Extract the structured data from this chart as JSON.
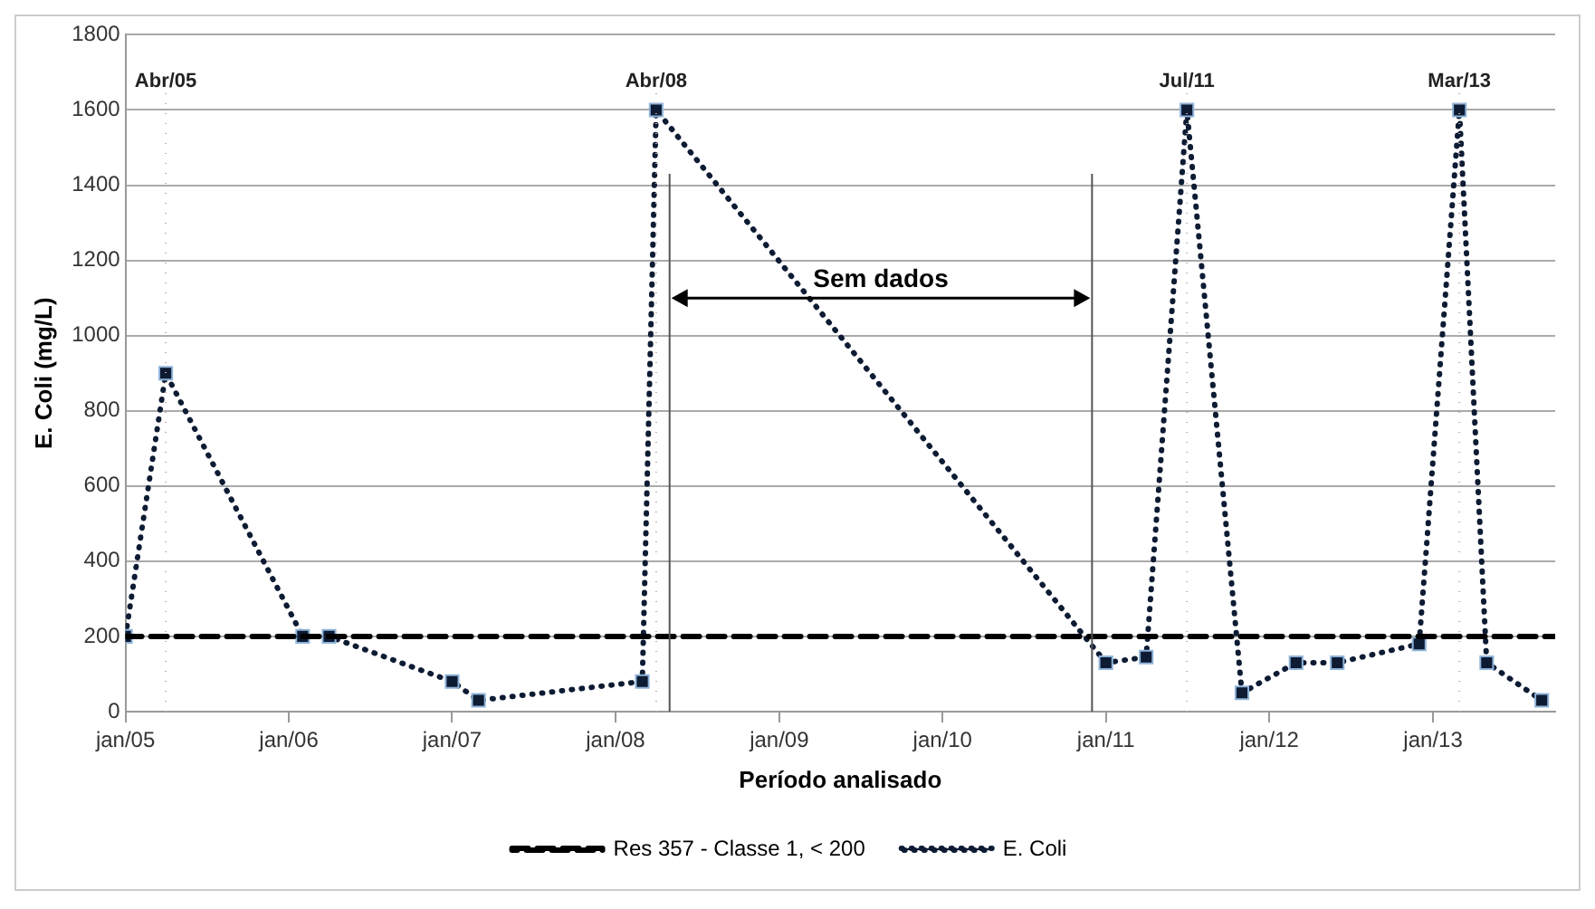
{
  "chart_data": {
    "type": "line",
    "xlabel": "Período analisado",
    "ylabel": "E. Coli (mg/L)",
    "xlim": [
      "2005-01",
      "2013-10"
    ],
    "xticks": [
      {
        "value": "2005-01",
        "label": "jan/05"
      },
      {
        "value": "2006-01",
        "label": "jan/06"
      },
      {
        "value": "2007-01",
        "label": "jan/07"
      },
      {
        "value": "2008-01",
        "label": "jan/08"
      },
      {
        "value": "2009-01",
        "label": "jan/09"
      },
      {
        "value": "2010-01",
        "label": "jan/10"
      },
      {
        "value": "2011-01",
        "label": "jan/11"
      },
      {
        "value": "2012-01",
        "label": "jan/12"
      },
      {
        "value": "2013-01",
        "label": "jan/13"
      }
    ],
    "ylim": [
      0,
      1800
    ],
    "yticks": [
      0,
      200,
      400,
      600,
      800,
      1000,
      1200,
      1400,
      1600,
      1800
    ],
    "grid": "y",
    "legend": "bottom",
    "series": [
      {
        "name": "Res 357 - Classe 1, < 200",
        "color": "#000000",
        "line_style": "dashed",
        "marker": "none",
        "x": [
          "2005-01",
          "2013-10"
        ],
        "values": [
          200,
          200
        ]
      },
      {
        "name": "E. Coli",
        "color": "#0d1b33",
        "line_style": "dotted",
        "marker": "square",
        "x": [
          "2005-01",
          "2005-04",
          "2006-02",
          "2006-04",
          "2007-01",
          "2007-03",
          "2008-03",
          "2008-04",
          "2011-01",
          "2011-04",
          "2011-07",
          "2011-11",
          "2012-03",
          "2012-06",
          "2012-12",
          "2013-03",
          "2013-05",
          "2013-09"
        ],
        "values": [
          200,
          900,
          200,
          200,
          80,
          30,
          80,
          1600,
          130,
          145,
          1600,
          50,
          130,
          130,
          180,
          1600,
          130,
          30
        ]
      }
    ],
    "ref_lines": [
      {
        "axis": "x",
        "value": "2005-04",
        "label": "Abr/05",
        "color": "#c8a8a8",
        "line_style": "dotted"
      },
      {
        "axis": "x",
        "value": "2008-04",
        "label": "Abr/08",
        "color": "#c8a8a8",
        "line_style": "dotted"
      },
      {
        "axis": "x",
        "value": "2011-07",
        "label": "Jul/11",
        "color": "#c8a8a8",
        "line_style": "dotted"
      },
      {
        "axis": "x",
        "value": "2013-03",
        "label": "Mar/13",
        "color": "#c8a8a8",
        "line_style": "dotted"
      },
      {
        "axis": "x",
        "value": "2008-05",
        "color": "#555555",
        "line_style": "solid"
      },
      {
        "axis": "x",
        "value": "2010-12",
        "color": "#555555",
        "line_style": "solid"
      }
    ],
    "annotations": [
      "Sem dados"
    ]
  }
}
